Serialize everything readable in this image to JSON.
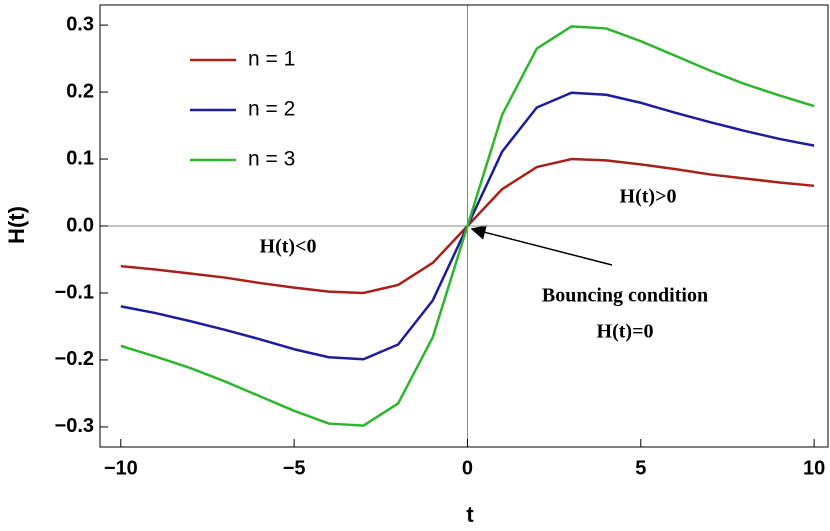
{
  "chart_data": {
    "type": "line",
    "x_label": "t",
    "y_label": "H(t)",
    "x": [
      -10,
      -9,
      -8,
      -7,
      -6,
      -5,
      -4,
      -3,
      -2,
      -1,
      0,
      1,
      2,
      3,
      4,
      5,
      6,
      7,
      8,
      9,
      10
    ],
    "series": [
      {
        "name": "n = 1",
        "color": "#a8201a",
        "values": [
          -0.06,
          -0.065,
          -0.071,
          -0.077,
          -0.085,
          -0.092,
          -0.098,
          -0.1,
          -0.088,
          -0.055,
          0,
          0.055,
          0.088,
          0.1,
          0.098,
          0.092,
          0.085,
          0.077,
          0.071,
          0.065,
          0.06
        ]
      },
      {
        "name": "n = 2",
        "color": "#1c1c9c",
        "values": [
          -0.12,
          -0.13,
          -0.142,
          -0.155,
          -0.169,
          -0.184,
          -0.196,
          -0.199,
          -0.177,
          -0.111,
          0,
          0.111,
          0.177,
          0.199,
          0.196,
          0.184,
          0.169,
          0.155,
          0.142,
          0.13,
          0.12
        ]
      },
      {
        "name": "n = 3",
        "color": "#2db52d",
        "values": [
          -0.179,
          -0.195,
          -0.212,
          -0.232,
          -0.254,
          -0.276,
          -0.295,
          -0.298,
          -0.265,
          -0.166,
          0,
          0.166,
          0.265,
          0.298,
          0.295,
          0.276,
          0.254,
          0.232,
          0.212,
          0.195,
          0.179
        ]
      }
    ],
    "xlim": [
      -10.6,
      10.4
    ],
    "ylim": [
      -0.33,
      0.33
    ],
    "xticks": [
      {
        "value": -10,
        "label": "−10"
      },
      {
        "value": -5,
        "label": "−5"
      },
      0,
      5,
      10
    ],
    "yticks": [
      {
        "value": -0.3,
        "label": "−0.3"
      },
      {
        "value": -0.2,
        "label": "−0.2"
      },
      {
        "value": -0.1,
        "label": "−0.1"
      },
      {
        "value": 0,
        "label": "0.0"
      },
      0.1,
      0.2,
      0.3
    ],
    "legend": "upper left",
    "annotations": [
      "H(t)>0",
      "H(t)<0",
      "Bouncing condition",
      "H(t)=0"
    ]
  }
}
